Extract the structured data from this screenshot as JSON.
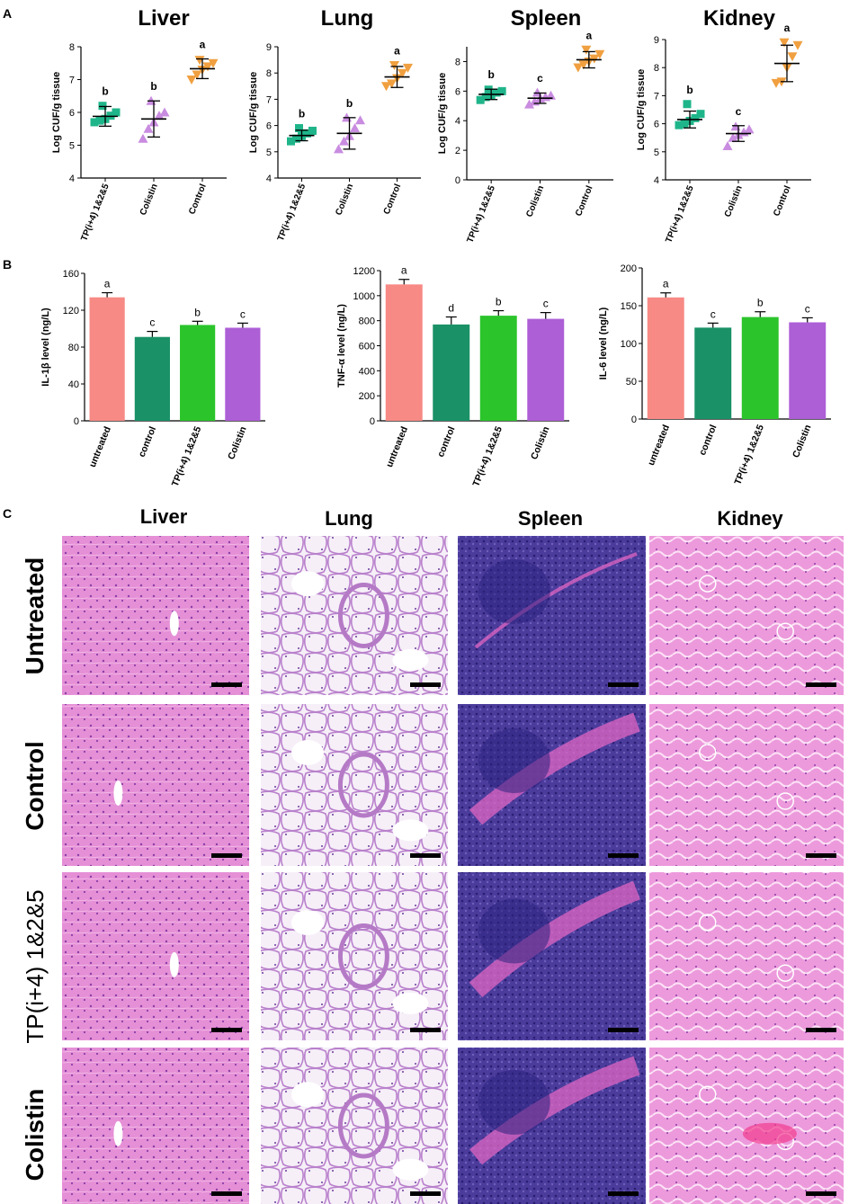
{
  "panels": {
    "A": "A",
    "B": "B",
    "C": "C"
  },
  "panel_a": {
    "ylabel": "Log CUF/g tissue",
    "categories": [
      "TP(i+4) 1&2&5",
      "Colistin",
      "Control"
    ],
    "group_colors": [
      "#1fb58a",
      "#c98ce0",
      "#f0a040"
    ],
    "charts": [
      {
        "type": "scatter",
        "title": "Liver",
        "ylabel": "Log CUF/g tissue",
        "ylim": [
          4,
          8
        ],
        "yticks": [
          4,
          5,
          6,
          7,
          8
        ],
        "groups": [
          {
            "category": "TP(i+4) 1&2&5",
            "values": [
              5.7,
              5.75,
              5.8,
              5.9,
              6.0,
              6.2
            ],
            "mean": 5.88,
            "sd": 0.3,
            "letter": "b"
          },
          {
            "category": "Colistin",
            "values": [
              5.2,
              5.5,
              5.7,
              5.9,
              6.0,
              6.35
            ],
            "mean": 5.8,
            "sd": 0.55,
            "letter": "b"
          },
          {
            "category": "Control",
            "values": [
              7.0,
              7.15,
              7.3,
              7.4,
              7.5,
              7.6
            ],
            "mean": 7.33,
            "sd": 0.3,
            "letter": "a"
          }
        ]
      },
      {
        "type": "scatter",
        "title": "Lung",
        "ylabel": "Log CUF/g tissue",
        "ylim": [
          4,
          9
        ],
        "yticks": [
          4,
          5,
          6,
          7,
          8,
          9
        ],
        "groups": [
          {
            "category": "TP(i+4) 1&2&5",
            "values": [
              5.4,
              5.5,
              5.6,
              5.7,
              5.8,
              5.9
            ],
            "mean": 5.62,
            "sd": 0.2,
            "letter": "b"
          },
          {
            "category": "Colistin",
            "values": [
              5.1,
              5.4,
              5.6,
              5.9,
              6.2,
              6.3
            ],
            "mean": 5.7,
            "sd": 0.6,
            "letter": "b"
          },
          {
            "category": "Control",
            "values": [
              7.5,
              7.6,
              7.8,
              8.0,
              8.2,
              8.3
            ],
            "mean": 7.85,
            "sd": 0.4,
            "letter": "a"
          }
        ]
      },
      {
        "type": "scatter",
        "title": "Spleen",
        "ylabel": "Log CUF/g tissue",
        "ylim": [
          0,
          9
        ],
        "yticks": [
          0,
          2,
          4,
          6,
          8
        ],
        "groups": [
          {
            "category": "TP(i+4) 1&2&5",
            "values": [
              5.4,
              5.6,
              5.7,
              5.9,
              6.0,
              6.1
            ],
            "mean": 5.78,
            "sd": 0.35,
            "letter": "b"
          },
          {
            "category": "Colistin",
            "values": [
              5.1,
              5.3,
              5.5,
              5.6,
              5.7,
              5.9
            ],
            "mean": 5.52,
            "sd": 0.35,
            "letter": "c"
          },
          {
            "category": "Control",
            "values": [
              7.6,
              7.8,
              8.0,
              8.2,
              8.5,
              8.8
            ],
            "mean": 8.12,
            "sd": 0.55,
            "letter": "a"
          }
        ]
      },
      {
        "type": "scatter",
        "title": "Kidney",
        "ylabel": "Log CUF/g tissue",
        "ylim": [
          4,
          9
        ],
        "yticks": [
          4,
          5,
          6,
          7,
          8,
          9
        ],
        "groups": [
          {
            "category": "TP(i+4) 1&2&5",
            "values": [
              5.95,
              6.0,
              6.1,
              6.2,
              6.35,
              6.7
            ],
            "mean": 6.15,
            "sd": 0.3,
            "letter": "b"
          },
          {
            "category": "Colistin",
            "values": [
              5.2,
              5.5,
              5.6,
              5.7,
              5.8,
              5.9
            ],
            "mean": 5.65,
            "sd": 0.28,
            "letter": "c"
          },
          {
            "category": "Control",
            "values": [
              7.45,
              7.5,
              8.0,
              8.4,
              8.8,
              8.9
            ],
            "mean": 8.15,
            "sd": 0.65,
            "letter": "a"
          }
        ]
      }
    ]
  },
  "panel_b": {
    "categories": [
      "untreated",
      "control",
      "TP(i+4) 1&2&5",
      "Colistin"
    ],
    "bar_colors": [
      "#f78a85",
      "#1a9167",
      "#2bc42b",
      "#ad5fd6"
    ],
    "charts": [
      {
        "type": "bar",
        "ylabel": "IL-1β level (ng/L)",
        "ylim": [
          0,
          160
        ],
        "yticks": [
          0,
          40,
          80,
          120,
          160
        ],
        "values": [
          134,
          91,
          104,
          101
        ],
        "errors": [
          5,
          6,
          4,
          5
        ],
        "letters": [
          "a",
          "c",
          "b",
          "c"
        ]
      },
      {
        "type": "bar",
        "ylabel": "TNF-α level (ng/L)",
        "ylim": [
          0,
          1200
        ],
        "yticks": [
          0,
          200,
          400,
          600,
          800,
          1000,
          1200
        ],
        "values": [
          1090,
          770,
          840,
          815
        ],
        "errors": [
          40,
          60,
          40,
          50
        ],
        "letters": [
          "a",
          "d",
          "b",
          "c"
        ]
      },
      {
        "type": "bar",
        "ylabel": "IL-6 level (ng/L)",
        "ylim": [
          0,
          200
        ],
        "yticks": [
          0,
          50,
          100,
          150,
          200
        ],
        "values": [
          161,
          121,
          135,
          128
        ],
        "errors": [
          6,
          6,
          7,
          6
        ],
        "letters": [
          "a",
          "c",
          "b",
          "c"
        ]
      }
    ]
  },
  "panel_c": {
    "column_titles": [
      "Liver",
      "Lung",
      "Spleen",
      "Kidney"
    ],
    "row_titles": [
      "Untreated",
      "Control",
      "TP(i+4) 1&2&5",
      "Colistin"
    ],
    "tissue_colors": {
      "liver": {
        "bg": "#e58fd6",
        "stain": "#a04bb5"
      },
      "lung": {
        "bg": "#f3eaf6",
        "stain": "#b57ac6"
      },
      "spleen": {
        "bg": "#5e4aa6",
        "stain": "#2e2380",
        "alt": "#e066c3"
      },
      "kidney": {
        "bg": "#ec9adc",
        "stain": "#b355bf"
      }
    },
    "scale_bar_color": "#000000"
  }
}
